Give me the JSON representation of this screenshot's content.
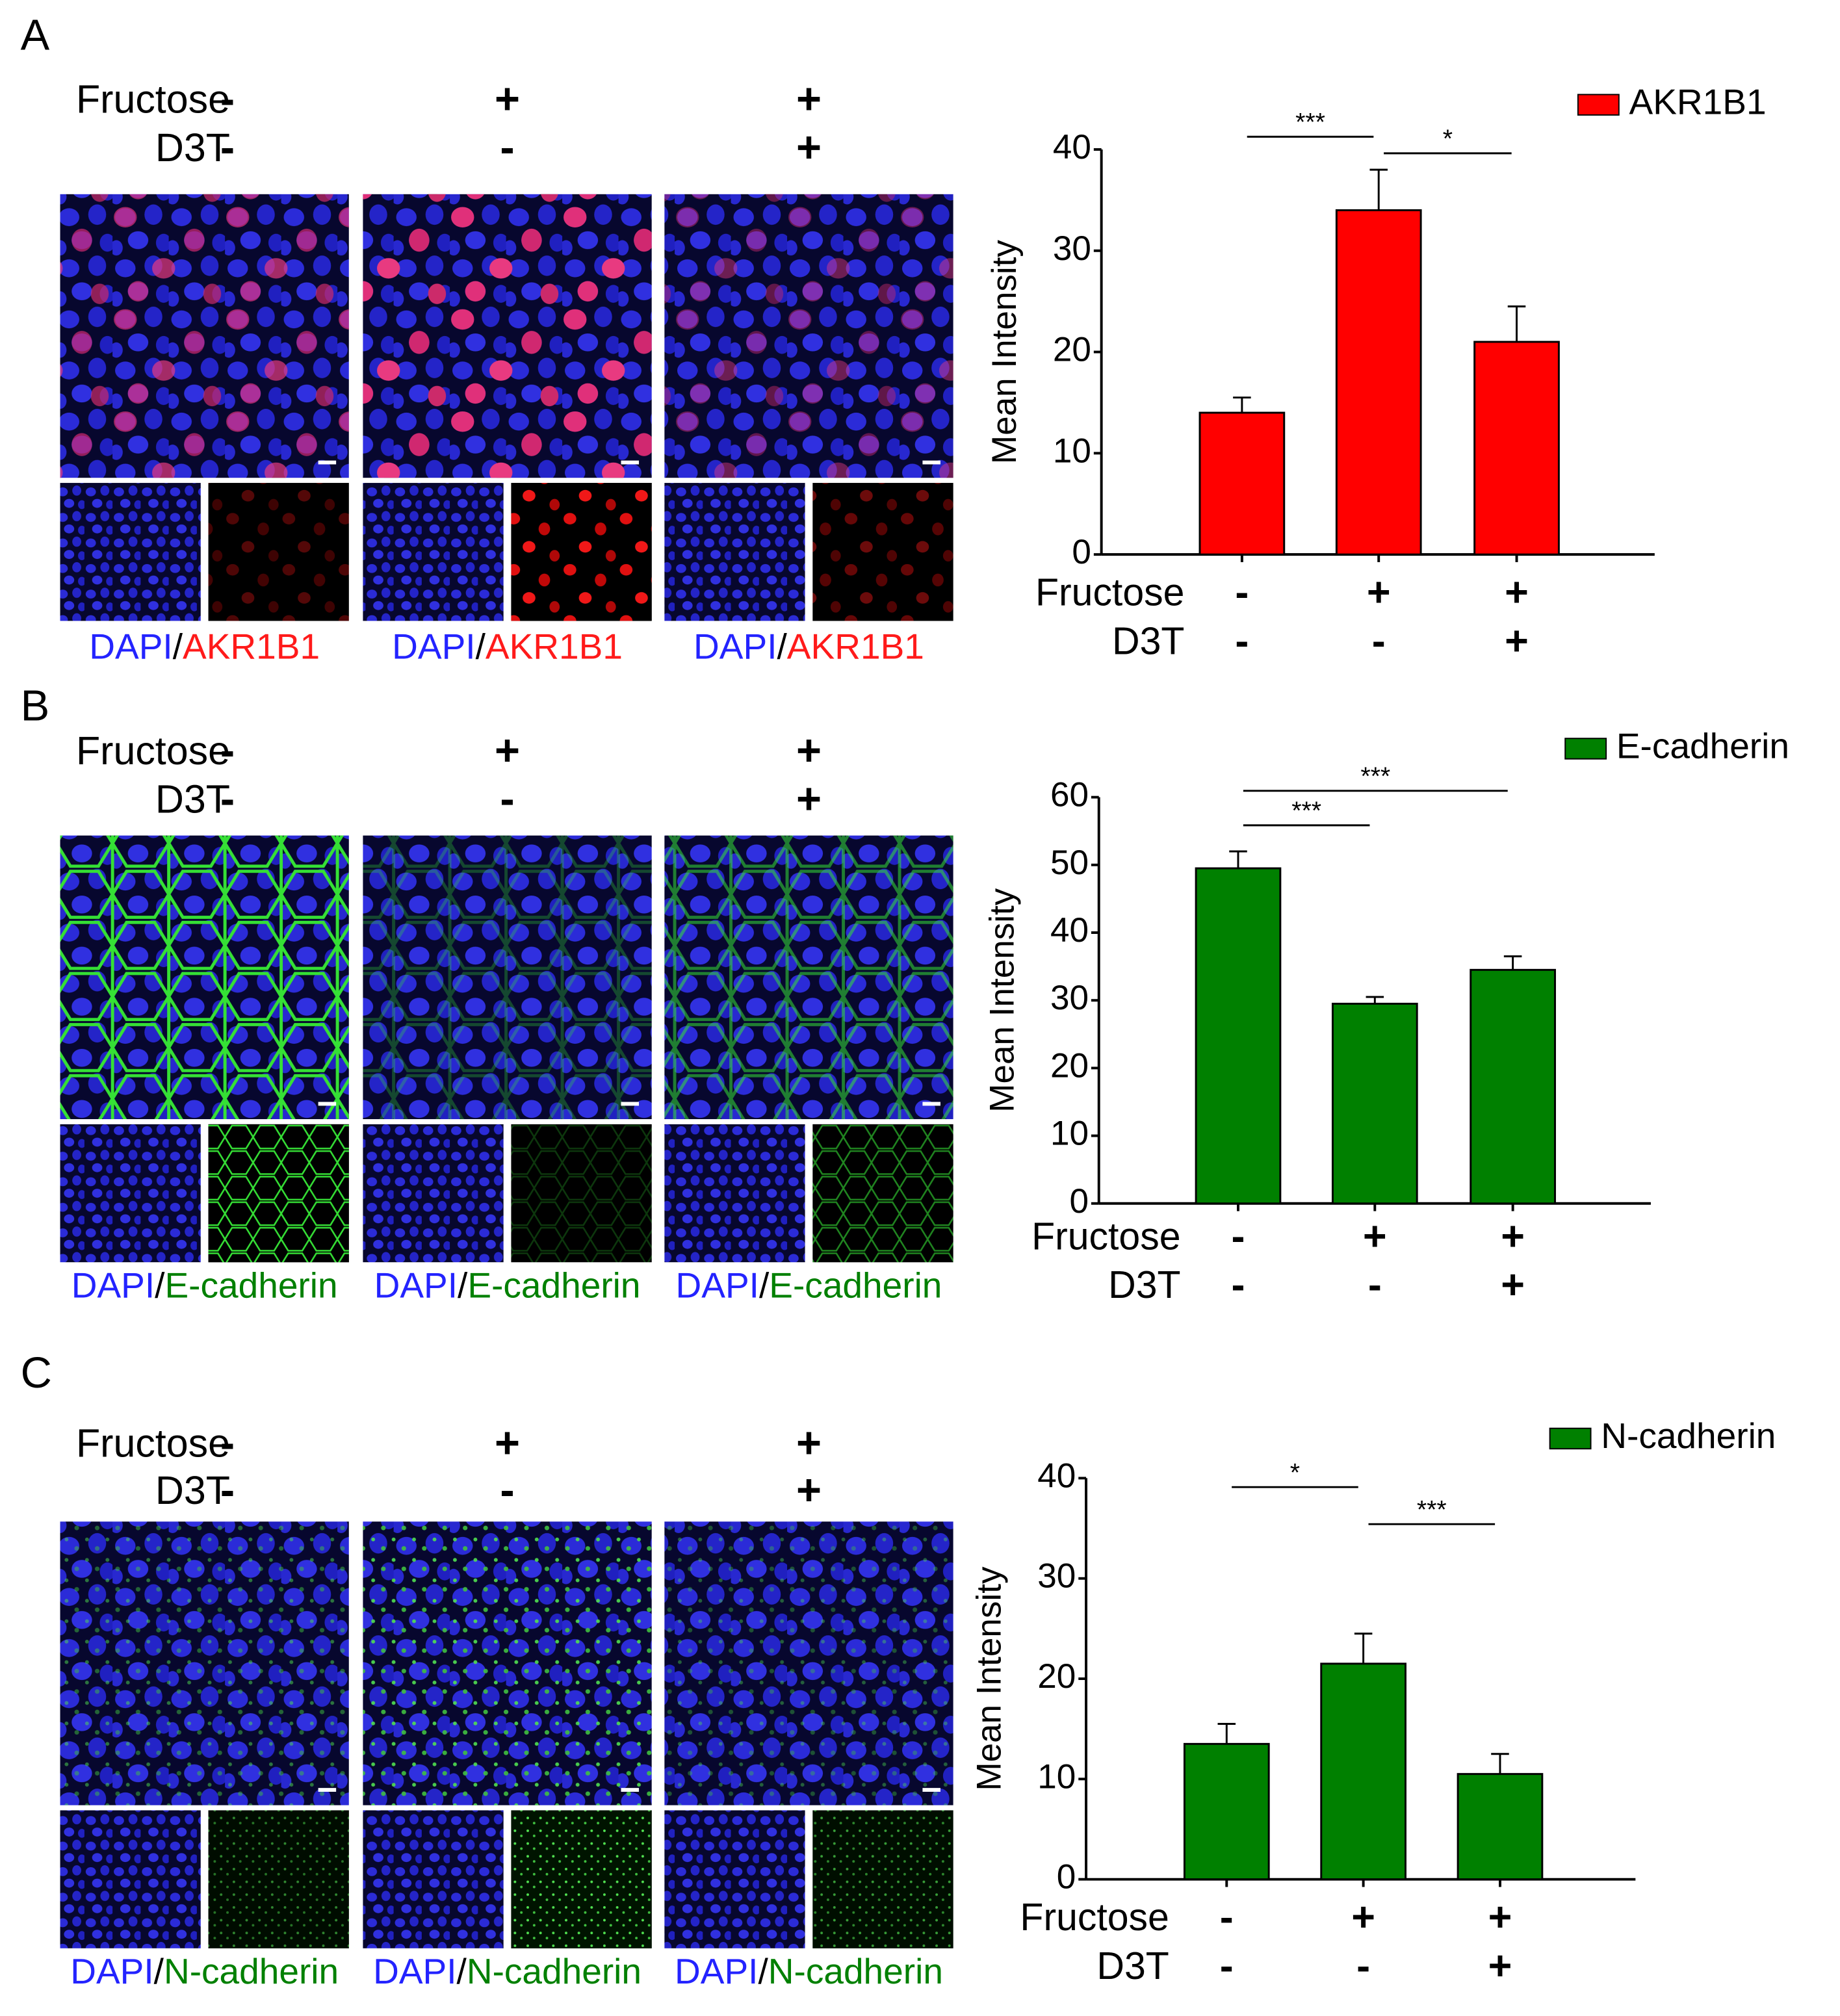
{
  "figure": {
    "panels": [
      {
        "letter": "A",
        "conditions": [
          {
            "label": "Fructose",
            "signs": [
              "-",
              "+",
              "+"
            ]
          },
          {
            "label": "D3T",
            "signs": [
              "-",
              "-",
              "+"
            ]
          }
        ],
        "captions": [
          [
            "DAPI",
            "/",
            "AKR1B1"
          ],
          [
            "DAPI",
            "/",
            "AKR1B1"
          ],
          [
            "DAPI",
            "/",
            "AKR1B1"
          ]
        ],
        "caption_colors": [
          "#2323ff",
          "#000000",
          "#ff1a1a"
        ]
      },
      {
        "letter": "B",
        "conditions": [
          {
            "label": "Fructose",
            "signs": [
              "-",
              "+",
              "+"
            ]
          },
          {
            "label": "D3T",
            "signs": [
              "-",
              "-",
              "+"
            ]
          }
        ],
        "captions": [
          [
            "DAPI",
            "/",
            "E-cadherin"
          ],
          [
            "DAPI",
            "/",
            "E-cadherin"
          ],
          [
            "DAPI",
            "/",
            "E-cadherin"
          ]
        ],
        "caption_colors": [
          "#2323ff",
          "#000000",
          "#008000"
        ]
      },
      {
        "letter": "C",
        "conditions": [
          {
            "label": "Fructose",
            "signs": [
              "-",
              "+",
              "+"
            ]
          },
          {
            "label": "D3T",
            "signs": [
              "-",
              "-",
              "+"
            ]
          }
        ],
        "captions": [
          [
            "DAPI",
            "/",
            "N-cadherin"
          ],
          [
            "DAPI",
            "/",
            "N-cadherin"
          ],
          [
            "DAPI",
            "/",
            "N-cadherin"
          ]
        ],
        "caption_colors": [
          "#2323ff",
          "#000000",
          "#008000"
        ]
      }
    ]
  },
  "chart_data": [
    {
      "type": "bar",
      "ylabel": "Mean Intensity",
      "categories": [
        null,
        null,
        null
      ],
      "x_conditions": [
        {
          "label": "Fructose",
          "signs": [
            "-",
            "+",
            "+"
          ]
        },
        {
          "label": "D3T",
          "signs": [
            "-",
            "-",
            "+"
          ]
        }
      ],
      "series": [
        {
          "name": "AKR1B1",
          "color": "#ff0000",
          "values": [
            14,
            34,
            21
          ],
          "errors": [
            1.5,
            4,
            3.5
          ]
        }
      ],
      "ylim": [
        0,
        40
      ],
      "yticks": [
        0,
        10,
        20,
        30,
        40
      ],
      "significance": [
        {
          "from": 0,
          "to": 1,
          "label": "***"
        },
        {
          "from": 1,
          "to": 2,
          "label": "*"
        }
      ]
    },
    {
      "type": "bar",
      "ylabel": "Mean Intensity",
      "categories": [
        null,
        null,
        null
      ],
      "x_conditions": [
        {
          "label": "Fructose",
          "signs": [
            "-",
            "+",
            "+"
          ]
        },
        {
          "label": "D3T",
          "signs": [
            "-",
            "-",
            "+"
          ]
        }
      ],
      "series": [
        {
          "name": "E-cadherin",
          "color": "#008000",
          "values": [
            49.5,
            29.5,
            34.5
          ],
          "errors": [
            2.5,
            1,
            2
          ]
        }
      ],
      "ylim": [
        0,
        60
      ],
      "yticks": [
        0,
        10,
        20,
        30,
        40,
        50,
        60
      ],
      "significance": [
        {
          "from": 0,
          "to": 1,
          "label": "***"
        },
        {
          "from": 0,
          "to": 2,
          "label": "***"
        }
      ]
    },
    {
      "type": "bar",
      "ylabel": "Mean Intensity",
      "categories": [
        null,
        null,
        null
      ],
      "x_conditions": [
        {
          "label": "Fructose",
          "signs": [
            "-",
            "+",
            "+"
          ]
        },
        {
          "label": "D3T",
          "signs": [
            "-",
            "-",
            "+"
          ]
        }
      ],
      "series": [
        {
          "name": "N-cadherin",
          "color": "#008000",
          "values": [
            13.5,
            21.5,
            10.5
          ],
          "errors": [
            2,
            3,
            2
          ]
        }
      ],
      "ylim": [
        0,
        40
      ],
      "yticks": [
        0,
        10,
        20,
        30,
        40
      ],
      "significance": [
        {
          "from": 0,
          "to": 1,
          "label": "*"
        },
        {
          "from": 1,
          "to": 2,
          "label": "***"
        }
      ]
    }
  ]
}
